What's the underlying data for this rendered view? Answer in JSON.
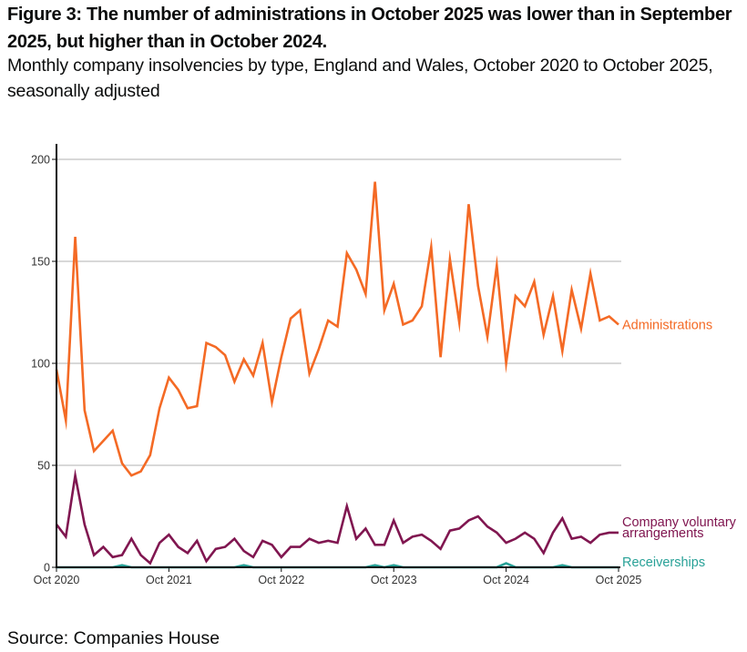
{
  "header": {
    "title": "Figure 3: The number of administrations in October 2025 was lower than in September 2025, but higher than in October 2024.",
    "subtitle": "Monthly company insolvencies by type, England and Wales, October 2020 to October 2025, seasonally adjusted"
  },
  "footer": {
    "source": "Source: Companies House"
  },
  "chart_data": {
    "type": "line",
    "title": "Figure 3: The number of administrations in October 2025 was lower than in September 2025, but higher than in October 2024.",
    "subtitle": "Monthly company insolvencies by type, England and Wales, October 2020 to October 2025, seasonally adjusted",
    "xlabel": "",
    "ylabel": "",
    "x_start": "Oct 2020",
    "x_months": 61,
    "xlim": [
      0,
      60
    ],
    "ylim": [
      0,
      200
    ],
    "grid": true,
    "legend": "direct labels at right",
    "x_ticks": [
      {
        "index": 0,
        "label": "Oct 2020"
      },
      {
        "index": 12,
        "label": "Oct 2021"
      },
      {
        "index": 24,
        "label": "Oct 2022"
      },
      {
        "index": 36,
        "label": "Oct 2023"
      },
      {
        "index": 48,
        "label": "Oct 2024"
      },
      {
        "index": 60,
        "label": "Oct 2025"
      }
    ],
    "y_ticks": [
      {
        "value": 0,
        "label": "0"
      },
      {
        "value": 50,
        "label": "50"
      },
      {
        "value": 100,
        "label": "100"
      },
      {
        "value": 150,
        "label": "150"
      },
      {
        "value": 200,
        "label": "200"
      }
    ],
    "series": [
      {
        "name": "Administrations",
        "label": "Administrations",
        "color": "#f46a25",
        "values": [
          97,
          72,
          162,
          77,
          57,
          62,
          67,
          51,
          45,
          47,
          55,
          78,
          93,
          87,
          78,
          79,
          110,
          108,
          104,
          91,
          102,
          94,
          110,
          81,
          103,
          122,
          126,
          95,
          107,
          121,
          118,
          154,
          146,
          134,
          189,
          126,
          139,
          119,
          121,
          128,
          157,
          103,
          151,
          120,
          178,
          138,
          113,
          148,
          100,
          133,
          128,
          140,
          114,
          133,
          106,
          136,
          117,
          144,
          121,
          123,
          119
        ]
      },
      {
        "name": "Company voluntary arrangements",
        "label_lines": [
          "Company voluntary",
          "arrangements"
        ],
        "color": "#801650",
        "values": [
          21,
          15,
          45,
          21,
          6,
          10,
          5,
          6,
          14,
          6,
          2,
          12,
          16,
          10,
          7,
          13,
          3,
          9,
          10,
          14,
          8,
          5,
          13,
          11,
          5,
          10,
          10,
          14,
          12,
          13,
          12,
          30,
          14,
          19,
          11,
          11,
          23,
          12,
          15,
          16,
          13,
          9,
          18,
          19,
          23,
          25,
          20,
          17,
          12,
          14,
          17,
          14,
          7,
          17,
          24,
          14,
          15,
          12,
          16,
          17,
          17
        ]
      },
      {
        "name": "Receiverships",
        "label": "Receiverships",
        "color": "#28a197",
        "values": [
          0,
          0,
          0,
          0,
          0,
          0,
          0,
          1,
          0,
          0,
          0,
          0,
          0,
          0,
          0,
          0,
          0,
          0,
          0,
          0,
          1,
          0,
          0,
          0,
          0,
          0,
          0,
          0,
          0,
          0,
          0,
          0,
          0,
          0,
          1,
          0,
          1,
          0,
          0,
          0,
          0,
          0,
          0,
          0,
          0,
          0,
          0,
          0,
          2,
          0,
          0,
          0,
          0,
          0,
          1,
          0,
          0,
          0,
          0,
          0,
          0
        ]
      }
    ]
  }
}
